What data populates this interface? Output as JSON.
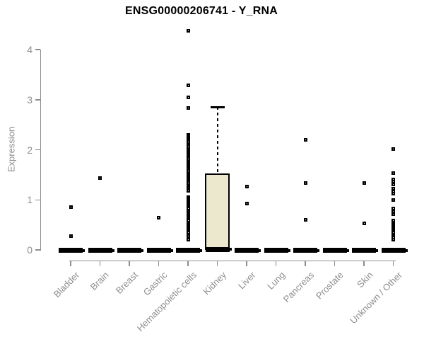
{
  "chart_data": {
    "type": "boxplot",
    "title": "ENSG00000206741 - Y_RNA",
    "ylabel": "Expression",
    "ylim": [
      0,
      4.4
    ],
    "yticks": [
      0,
      1,
      2,
      3,
      4
    ],
    "grid": false,
    "legend": "none",
    "colors": {
      "box_fill": "#ece8cd",
      "box_border": "#000000",
      "marker": "#000000",
      "axis": "#8e8e8e",
      "axis_text": "#8e8e8e",
      "title_text": "#000000"
    },
    "categories": [
      "Bladder",
      "Brain",
      "Breast",
      "Gastric",
      "Hematopoietic cells",
      "Kidney",
      "Liver",
      "Lung",
      "Pancreas",
      "Prostate",
      "Skin",
      "Unknown / Other"
    ],
    "boxes": [
      {
        "category": "Bladder",
        "q1": 0,
        "median": 0,
        "q3": 0.04,
        "whisker_low": 0,
        "whisker_high": 0.04,
        "outliers": [
          0.86,
          0.27
        ]
      },
      {
        "category": "Brain",
        "q1": 0,
        "median": 0,
        "q3": 0.04,
        "whisker_low": 0,
        "whisker_high": 0.04,
        "outliers": [
          1.44
        ]
      },
      {
        "category": "Breast",
        "q1": 0,
        "median": 0,
        "q3": 0.04,
        "whisker_low": 0,
        "whisker_high": 0.04,
        "outliers": []
      },
      {
        "category": "Gastric",
        "q1": 0,
        "median": 0,
        "q3": 0.04,
        "whisker_low": 0,
        "whisker_high": 0.04,
        "outliers": [
          0.64
        ]
      },
      {
        "category": "Hematopoietic cells",
        "q1": 0,
        "median": 0,
        "q3": 0.04,
        "whisker_low": 0,
        "whisker_high": 0.04,
        "outliers": [
          4.38,
          3.28,
          3.05,
          2.83,
          2.3,
          2.27,
          2.24,
          2.21,
          2.18,
          2.15,
          2.12,
          2.09,
          2.06,
          1.99,
          1.96,
          1.93,
          1.9,
          1.87,
          1.84,
          1.81,
          1.78,
          1.75,
          1.72,
          1.69,
          1.66,
          1.63,
          1.6,
          1.57,
          1.54,
          1.51,
          1.48,
          1.45,
          1.42,
          1.39,
          1.36,
          1.33,
          1.3,
          1.27,
          1.24,
          1.21,
          1.18,
          1.06,
          1.03,
          1.0,
          0.97,
          0.94,
          0.91,
          0.88,
          0.85,
          0.82,
          0.79,
          0.76,
          0.73,
          0.7,
          0.67,
          0.64,
          0.61,
          0.58,
          0.55,
          0.52,
          0.49,
          0.46,
          0.43,
          0.4,
          0.37,
          0.34,
          0.31,
          0.28,
          0.21
        ]
      },
      {
        "category": "Kidney",
        "q1": 0,
        "median": 0.02,
        "q3": 1.53,
        "whisker_low": 0,
        "whisker_high": 2.85,
        "outliers": []
      },
      {
        "category": "Liver",
        "q1": 0,
        "median": 0,
        "q3": 0.04,
        "whisker_low": 0,
        "whisker_high": 0.04,
        "outliers": [
          1.26,
          0.92
        ]
      },
      {
        "category": "Lung",
        "q1": 0,
        "median": 0,
        "q3": 0.04,
        "whisker_low": 0,
        "whisker_high": 0.04,
        "outliers": []
      },
      {
        "category": "Pancreas",
        "q1": 0,
        "median": 0,
        "q3": 0.04,
        "whisker_low": 0,
        "whisker_high": 0.04,
        "outliers": [
          2.2,
          1.34,
          0.6
        ]
      },
      {
        "category": "Prostate",
        "q1": 0,
        "median": 0,
        "q3": 0.04,
        "whisker_low": 0,
        "whisker_high": 0.04,
        "outliers": []
      },
      {
        "category": "Skin",
        "q1": 0,
        "median": 0,
        "q3": 0.04,
        "whisker_low": 0,
        "whisker_high": 0.04,
        "outliers": [
          1.34,
          0.53
        ]
      },
      {
        "category": "Unknown / Other",
        "q1": 0,
        "median": 0,
        "q3": 0.04,
        "whisker_low": 0,
        "whisker_high": 0.04,
        "outliers": [
          2.02,
          1.53,
          1.41,
          1.36,
          1.31,
          1.22,
          1.17,
          1.13,
          1.0,
          0.82,
          0.77,
          0.72,
          0.58,
          0.55,
          0.52,
          0.49,
          0.46,
          0.43,
          0.4,
          0.37,
          0.34,
          0.31,
          0.28,
          0.25,
          0.21
        ]
      }
    ]
  }
}
